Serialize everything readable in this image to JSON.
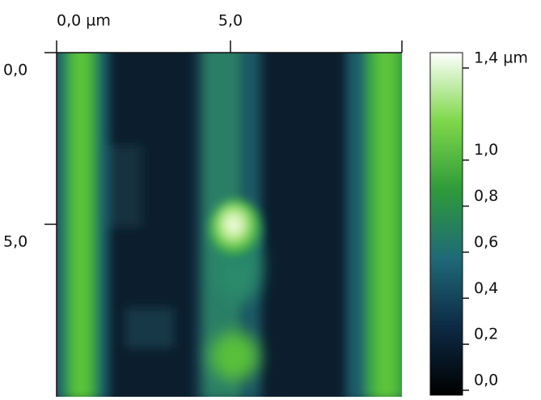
{
  "chart_data": {
    "type": "heatmap",
    "xlim": [
      0,
      10
    ],
    "xticks": [
      {
        "value": 0,
        "label": "0,0 µm"
      },
      {
        "value": 5,
        "label": "5,0"
      }
    ],
    "ylim": [
      0,
      10
    ],
    "yticks": [
      {
        "value": 0,
        "label": "0,0"
      },
      {
        "value": 5,
        "label": "5,0"
      }
    ],
    "colorbar": {
      "lim": [
        0,
        1.4
      ],
      "colors": [
        "#000000",
        "#0d2a45",
        "#1f6a78",
        "#2f9a3a",
        "#7ed84a",
        "#ffffff"
      ],
      "ticks": [
        {
          "value": 1.4,
          "label": "1,4 µm"
        },
        {
          "value": 1.0,
          "label": "1,0"
        },
        {
          "value": 0.8,
          "label": "0,8"
        },
        {
          "value": 0.6,
          "label": "0,6"
        },
        {
          "value": 0.4,
          "label": "0,4"
        },
        {
          "value": 0.2,
          "label": "0,2"
        },
        {
          "value": 0.0,
          "label": "0,0"
        }
      ]
    }
  }
}
